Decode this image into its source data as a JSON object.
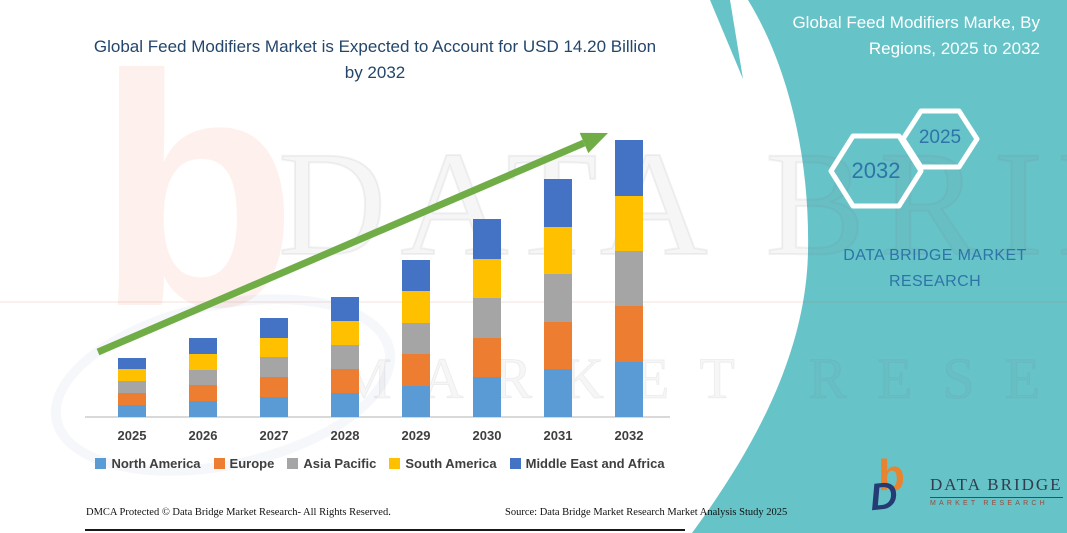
{
  "page": {
    "background": "#ffffff",
    "accent_teal": "#66C3C8",
    "title_color": "#24466B",
    "arrow_color": "#70AD47"
  },
  "header": {
    "title": "Global Feed Modifiers Market is Expected to Account for USD 14.20 Billion by 2032"
  },
  "side_panel": {
    "heading": "Global Feed Modifiers Marke, By Regions, 2025 to 2032",
    "hexagons": [
      {
        "label": "2032"
      },
      {
        "label": "2025"
      }
    ],
    "brand_text": "DATA BRIDGE MARKET RESEARCH"
  },
  "watermarks": {
    "big_letter": "b",
    "line1": "DATA BRIDGE",
    "line2": "MARKET RESEARCH"
  },
  "chart_data": {
    "type": "bar",
    "stacked": true,
    "title": "Global Feed Modifiers Market, By Regions, 2025 to 2032",
    "unit": "USD Billion",
    "categories": [
      "2025",
      "2026",
      "2027",
      "2028",
      "2029",
      "2030",
      "2031",
      "2032"
    ],
    "totals": [
      3.05,
      4.05,
      5.1,
      6.15,
      8.05,
      10.15,
      12.2,
      14.2
    ],
    "series": [
      {
        "name": "North America",
        "color": "#5B9BD5",
        "values": [
          0.61,
          0.81,
          1.02,
          1.23,
          1.61,
          2.03,
          2.44,
          2.84
        ]
      },
      {
        "name": "Europe",
        "color": "#ED7D31",
        "values": [
          0.61,
          0.81,
          1.02,
          1.23,
          1.61,
          2.03,
          2.44,
          2.84
        ]
      },
      {
        "name": "Asia Pacific",
        "color": "#A5A5A5",
        "values": [
          0.61,
          0.81,
          1.02,
          1.23,
          1.61,
          2.03,
          2.44,
          2.84
        ]
      },
      {
        "name": "South America",
        "color": "#FFC000",
        "values": [
          0.61,
          0.81,
          1.02,
          1.23,
          1.61,
          2.03,
          2.44,
          2.84
        ]
      },
      {
        "name": "Middle East and Africa",
        "color": "#4472C4",
        "values": [
          0.61,
          0.81,
          1.02,
          1.23,
          1.61,
          2.03,
          2.44,
          2.84
        ]
      }
    ],
    "ylim": [
      0,
      14.7
    ],
    "grid": false,
    "legend_position": "bottom",
    "annotations": [
      "Green upward trend arrow from 2025 toward 2032",
      "Callout: USD 14.20 Billion by 2032"
    ]
  },
  "footer": {
    "dmca": "DMCA Protected © Data Bridge Market Research-  All Rights Reserved.",
    "source": "Source: Data Bridge Market Research  Market Analysis Study 2025"
  },
  "logo": {
    "mark_b": "b",
    "mark_d": "D",
    "name": "DATA BRIDGE",
    "sub": "MARKET RESEARCH"
  }
}
